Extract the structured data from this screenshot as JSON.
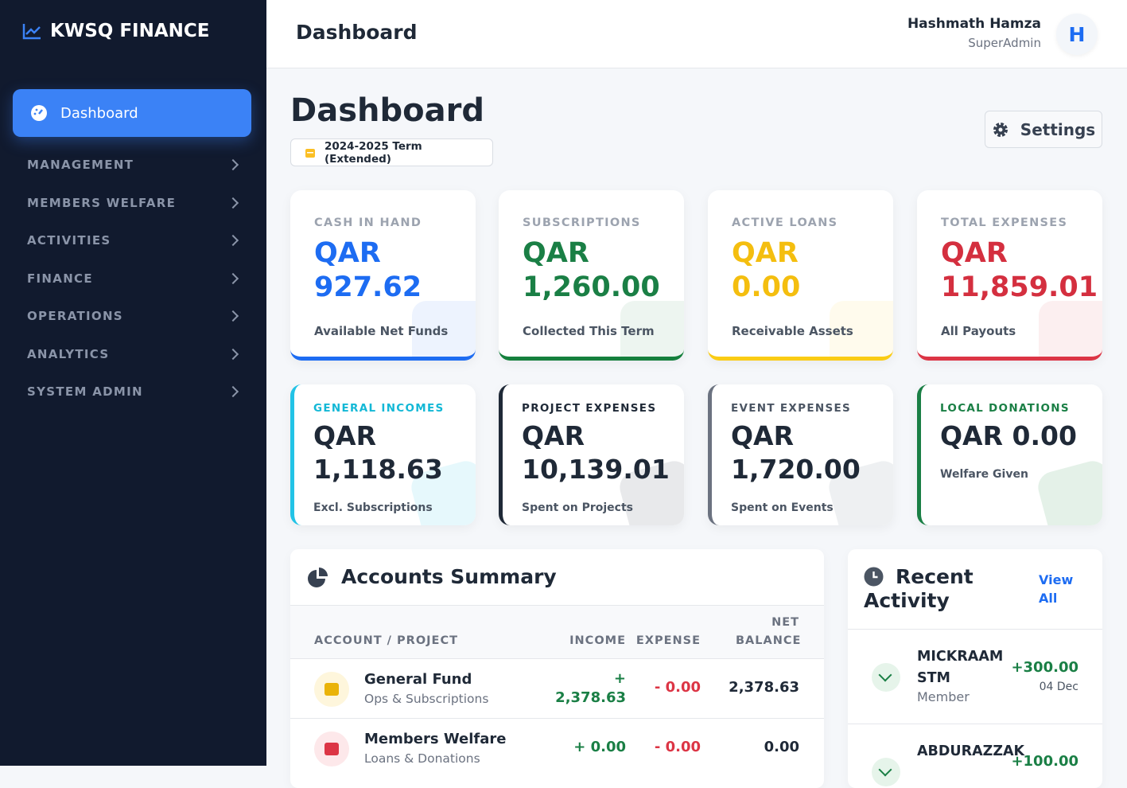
{
  "sidebar": {
    "brand": "KWSQ FINANCE",
    "active_item": "Dashboard",
    "menu": [
      "MANAGEMENT",
      "MEMBERS WELFARE",
      "ACTIVITIES",
      "FINANCE",
      "OPERATIONS",
      "ANALYTICS",
      "SYSTEM ADMIN"
    ]
  },
  "topbar": {
    "title": "Dashboard",
    "user_name": "Hashmath Hamza",
    "user_role": "SuperAdmin",
    "avatar": "H"
  },
  "header": {
    "title": "Dashboard",
    "term": "2024-2025 Term (Extended)",
    "settings": "Settings"
  },
  "stats": [
    {
      "label": "CASH IN HAND",
      "value": "QAR 927.62",
      "note": "Available Net Funds"
    },
    {
      "label": "SUBSCRIPTIONS",
      "value": "QAR 1,260.00",
      "note": "Collected This Term"
    },
    {
      "label": "ACTIVE LOANS",
      "value": "QAR 0.00",
      "note": "Receivable Assets"
    },
    {
      "label": "TOTAL EXPENSES",
      "value": "QAR 11,859.01",
      "note": "All Payouts"
    }
  ],
  "secondary_stats": [
    {
      "label": "GENERAL INCOMES",
      "value": "QAR 1,118.63",
      "note": "Excl. Subscriptions"
    },
    {
      "label": "PROJECT EXPENSES",
      "value": "QAR 10,139.01",
      "note": "Spent on Projects"
    },
    {
      "label": "EVENT EXPENSES",
      "value": "QAR 1,720.00",
      "note": "Spent on Events"
    },
    {
      "label": "LOCAL DONATIONS",
      "value": "QAR 0.00",
      "note": "Welfare Given"
    }
  ],
  "accounts": {
    "title": "Accounts Summary",
    "columns": [
      "ACCOUNT / PROJECT",
      "INCOME",
      "EXPENSE",
      "NET BALANCE"
    ],
    "rows": [
      {
        "name": "General Fund",
        "subtitle": "Ops & Subscriptions",
        "income": "+ 2,378.63",
        "expense": "- 0.00",
        "net": "2,378.63"
      },
      {
        "name": "Members Welfare",
        "subtitle": "Loans & Donations",
        "income": "+ 0.00",
        "expense": "- 0.00",
        "net": "0.00"
      }
    ]
  },
  "activity": {
    "title": "Recent Activity",
    "view_all": "View All",
    "items": [
      {
        "name": "MICKRAAM STM",
        "role": "Member",
        "amount": "+300.00",
        "date": "04 Dec"
      },
      {
        "name": "ABDURAZZAK",
        "amount": "+100.00"
      }
    ]
  }
}
